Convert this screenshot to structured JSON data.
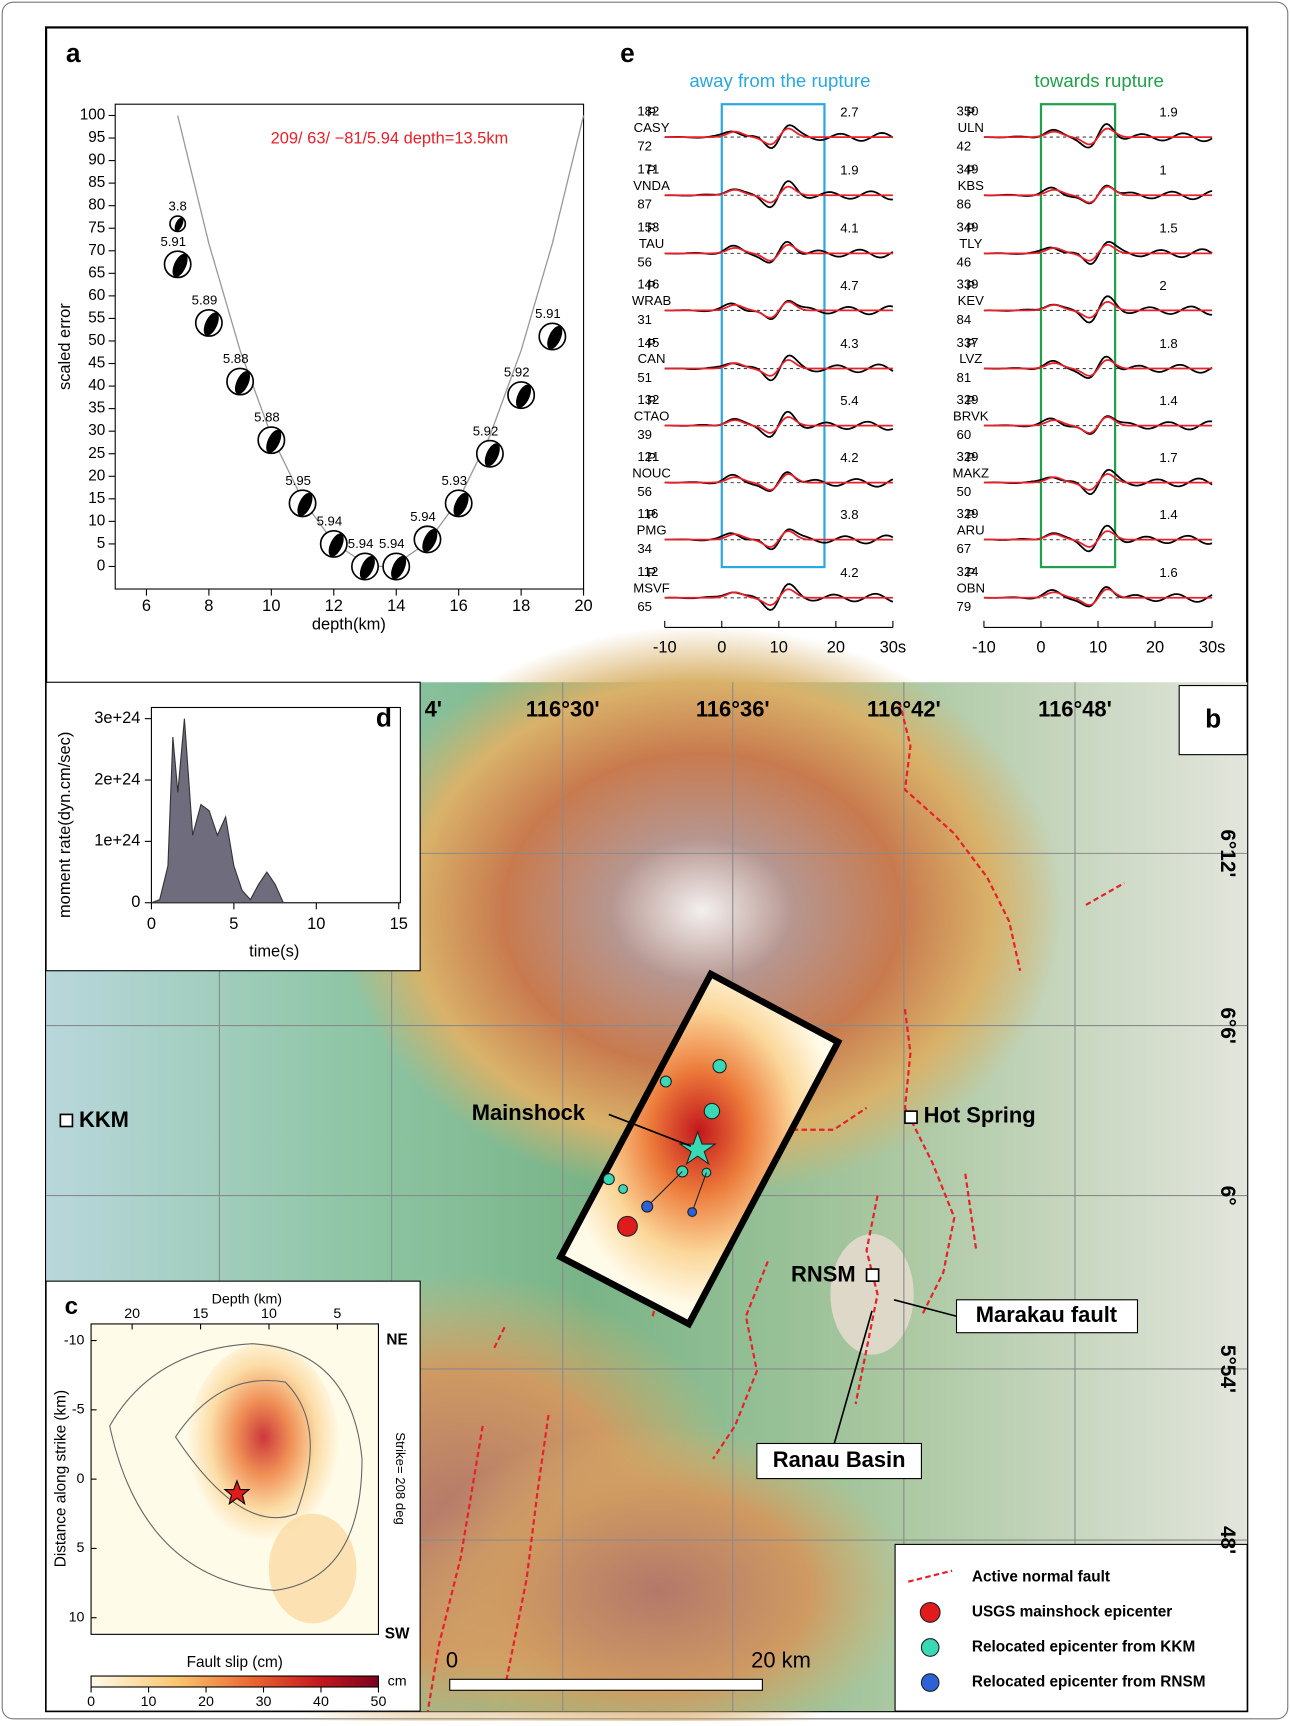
{
  "chart_data": [
    {
      "type": "scatter",
      "panel": "a",
      "annotation": "209/ 63/ −81/5.94 depth=13.5km",
      "x_label": "depth(km)",
      "y_label": "scaled error",
      "x": [
        7,
        7,
        8,
        9,
        10,
        11,
        12,
        13,
        14,
        15,
        16,
        17,
        18,
        19
      ],
      "values": [
        76,
        67,
        54,
        41,
        28,
        14,
        5,
        0,
        0,
        6,
        14,
        25,
        38,
        51
      ],
      "magnitudes": [
        "3.8",
        "5.91",
        "5.89",
        "5.88",
        "5.88",
        "5.95",
        "5.94",
        "5.94",
        "5.94",
        "5.94",
        "5.93",
        "5.92",
        "5.92",
        "5.91"
      ],
      "curve": {
        "x": [
          7,
          8,
          9,
          10,
          11,
          12,
          13,
          13.5,
          14,
          15,
          16,
          17,
          18,
          19,
          20
        ],
        "values": [
          100,
          71.6,
          47.9,
          29.0,
          14.8,
          5.3,
          0.6,
          0,
          0.6,
          5.3,
          14.8,
          29.0,
          47.9,
          71.6,
          100
        ],
        "color": "#999999"
      },
      "xlim": [
        5,
        20
      ],
      "ylim": [
        -5,
        102.5
      ],
      "xticks": [
        6,
        8,
        10,
        12,
        14,
        16,
        18,
        20
      ],
      "yticks": [
        0,
        5,
        10,
        15,
        20,
        25,
        30,
        35,
        40,
        45,
        50,
        55,
        60,
        65,
        70,
        75,
        80,
        85,
        90,
        95,
        100
      ],
      "annotation_color": "#e8202a"
    },
    {
      "type": "area",
      "panel": "d",
      "x_label": "time(s)",
      "y_label": "moment rate(dyn.cm/sec)",
      "x": [
        0,
        0.5,
        1,
        1.3,
        1.6,
        2,
        2.5,
        3,
        3.5,
        4,
        4.5,
        5,
        5.5,
        6,
        6.5,
        7,
        7.5,
        8,
        15
      ],
      "values": [
        0,
        5e+22,
        6e+23,
        2.7e+24,
        1.8e+24,
        3e+24,
        1.1e+24,
        1.6e+24,
        1.5e+24,
        1.1e+24,
        1.4e+24,
        6e+23,
        2e+23,
        5e+22,
        3e+23,
        5e+23,
        3e+23,
        0,
        0
      ],
      "color": "#6f6c7d",
      "xlim": [
        -1.2,
        15.1
      ],
      "ylim": [
        0,
        3.2e+24
      ],
      "xticks": [
        0,
        5,
        10,
        15
      ],
      "yticks": [
        0,
        {
          "value": 1e+24,
          "label": "1e+24"
        },
        {
          "value": 2e+24,
          "label": "2e+24"
        },
        {
          "value": 3e+24,
          "label": "3e+24"
        }
      ]
    }
  ],
  "waveforms": {
    "panel": "e",
    "xlim": [
      -10,
      30
    ],
    "xticks": [
      -10,
      0,
      10,
      20,
      {
        "value": 30,
        "label": "30s"
      }
    ],
    "columns": [
      {
        "title": "away from the rupture",
        "color": "#29a8e0",
        "window": [
          0,
          18
        ],
        "stations": [
          {
            "phase": "P",
            "name": "CASY",
            "azimuth": 182,
            "distance": 72,
            "amplitude": 2.7
          },
          {
            "phase": "P",
            "name": "VNDA",
            "azimuth": 171,
            "distance": 87,
            "amplitude": 1.9
          },
          {
            "phase": "P",
            "name": "TAU",
            "azimuth": 153,
            "distance": 56,
            "amplitude": 4.1
          },
          {
            "phase": "P",
            "name": "WRAB",
            "azimuth": 146,
            "distance": 31,
            "amplitude": 4.7
          },
          {
            "phase": "P",
            "name": "CAN",
            "azimuth": 145,
            "distance": 51,
            "amplitude": 4.3
          },
          {
            "phase": "P",
            "name": "CTAO",
            "azimuth": 132,
            "distance": 39,
            "amplitude": 5.4
          },
          {
            "phase": "P",
            "name": "NOUC",
            "azimuth": 121,
            "distance": 56,
            "amplitude": 4.2
          },
          {
            "phase": "P",
            "name": "PMG",
            "azimuth": 116,
            "distance": 34,
            "amplitude": 3.8
          },
          {
            "phase": "P",
            "name": "MSVF",
            "azimuth": 112,
            "distance": 65,
            "amplitude": 4.2
          }
        ]
      },
      {
        "title": "towards rupture",
        "color": "#1fa04a",
        "window": [
          0,
          13
        ],
        "stations": [
          {
            "phase": "P",
            "name": "ULN",
            "azimuth": 350,
            "distance": 42,
            "amplitude": 1.9
          },
          {
            "phase": "P",
            "name": "KBS",
            "azimuth": 349,
            "distance": 86,
            "amplitude": 1.0
          },
          {
            "phase": "P",
            "name": "TLY",
            "azimuth": 349,
            "distance": 46,
            "amplitude": 1.5
          },
          {
            "phase": "P",
            "name": "KEV",
            "azimuth": 339,
            "distance": 84,
            "amplitude": 2.0
          },
          {
            "phase": "P",
            "name": "LVZ",
            "azimuth": 337,
            "distance": 81,
            "amplitude": 1.8
          },
          {
            "phase": "P",
            "name": "BRVK",
            "azimuth": 329,
            "distance": 60,
            "amplitude": 1.4
          },
          {
            "phase": "P",
            "name": "MAKZ",
            "azimuth": 329,
            "distance": 50,
            "amplitude": 1.7
          },
          {
            "phase": "P",
            "name": "ARU",
            "azimuth": 329,
            "distance": 67,
            "amplitude": 1.4
          },
          {
            "phase": "P",
            "name": "OBN",
            "azimuth": 324,
            "distance": 79,
            "amplitude": 1.6
          }
        ]
      }
    ]
  },
  "slip_model": {
    "panel": "c",
    "x_label": "Depth (km)",
    "xticks": [
      20,
      15,
      10,
      5
    ],
    "xlim": [
      23,
      2
    ],
    "y_label": "Distance along strike (km)",
    "yticks": [
      -10,
      -5,
      0,
      5,
      10
    ],
    "ylim": [
      -11.2,
      11.2
    ],
    "top_right": "NE",
    "bottom_right": "SW",
    "strike": "Strike= 208 deg",
    "colorbar": {
      "label": "Fault slip (cm)",
      "unit": "cm",
      "lim": [
        0,
        50
      ],
      "ticks": [
        0,
        10,
        20,
        30,
        40,
        50
      ]
    }
  },
  "map": {
    "panel": "b",
    "lon_labels": [
      "4'",
      "116°30'",
      "116°36'",
      "116°42'",
      "116°48'"
    ],
    "lat_labels": [
      "6°12'",
      "6°6'",
      "6°",
      "5°54'",
      "48'"
    ],
    "sites": [
      "KKM",
      "Hot Spring",
      "RNSM"
    ],
    "annotations": [
      "Mainshock",
      "Marakau fault",
      "Ranau Basin"
    ],
    "legend": [
      "Active normal fault",
      "USGS mainshock epicenter",
      "Relocated epicenter from KKM",
      "Relocated epicenter from RNSM"
    ],
    "scale_bar": [
      "0",
      "20 km"
    ]
  }
}
